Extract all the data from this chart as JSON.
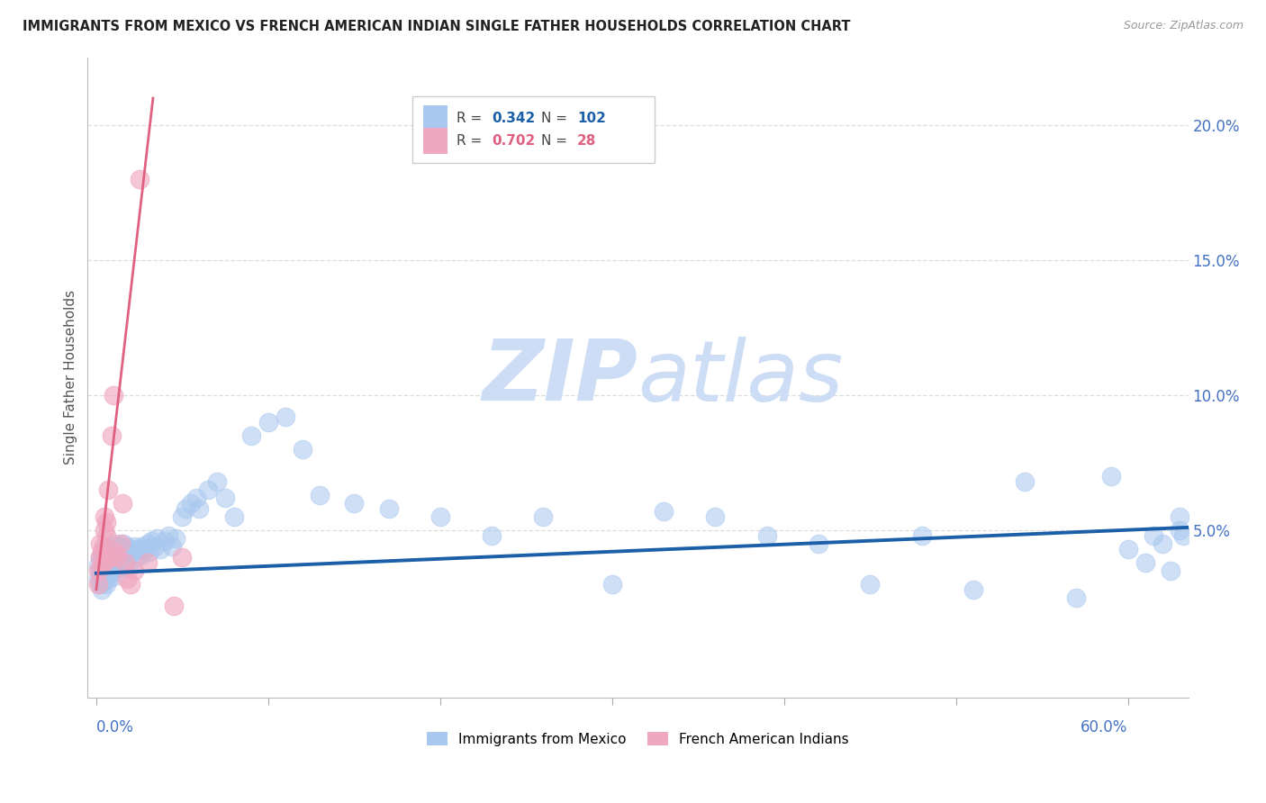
{
  "title": "IMMIGRANTS FROM MEXICO VS FRENCH AMERICAN INDIAN SINGLE FATHER HOUSEHOLDS CORRELATION CHART",
  "source": "Source: ZipAtlas.com",
  "ylabel": "Single Father Households",
  "y_tick_vals": [
    0.05,
    0.1,
    0.15,
    0.2
  ],
  "y_tick_labels": [
    "5.0%",
    "10.0%",
    "15.0%",
    "20.0%"
  ],
  "xlim": [
    -0.005,
    0.635
  ],
  "ylim": [
    -0.012,
    0.225
  ],
  "blue_R": 0.342,
  "blue_N": 102,
  "pink_R": 0.702,
  "pink_N": 28,
  "blue_color": "#a8c8f0",
  "pink_color": "#f0a8c0",
  "blue_line_color": "#1a5fa8",
  "pink_line_color": "#e06080",
  "watermark_zip": "ZIP",
  "watermark_atlas": "atlas",
  "watermark_color": "#ccddf5",
  "background_color": "#ffffff",
  "legend_label_blue": "Immigrants from Mexico",
  "legend_label_pink": "French American Indians",
  "blue_x": [
    0.001,
    0.001,
    0.002,
    0.002,
    0.002,
    0.003,
    0.003,
    0.003,
    0.004,
    0.004,
    0.004,
    0.005,
    0.005,
    0.005,
    0.006,
    0.006,
    0.006,
    0.007,
    0.007,
    0.007,
    0.008,
    0.008,
    0.008,
    0.009,
    0.009,
    0.01,
    0.01,
    0.01,
    0.011,
    0.011,
    0.012,
    0.012,
    0.013,
    0.013,
    0.014,
    0.014,
    0.015,
    0.015,
    0.016,
    0.016,
    0.017,
    0.017,
    0.018,
    0.018,
    0.019,
    0.019,
    0.02,
    0.021,
    0.022,
    0.023,
    0.025,
    0.026,
    0.027,
    0.028,
    0.03,
    0.031,
    0.032,
    0.034,
    0.035,
    0.037,
    0.04,
    0.042,
    0.044,
    0.046,
    0.05,
    0.052,
    0.055,
    0.058,
    0.06,
    0.065,
    0.07,
    0.075,
    0.08,
    0.09,
    0.1,
    0.11,
    0.12,
    0.13,
    0.15,
    0.17,
    0.2,
    0.23,
    0.26,
    0.3,
    0.33,
    0.36,
    0.39,
    0.42,
    0.45,
    0.48,
    0.51,
    0.54,
    0.57,
    0.59,
    0.6,
    0.61,
    0.615,
    0.62,
    0.625,
    0.63,
    0.63,
    0.632
  ],
  "blue_y": [
    0.037,
    0.032,
    0.04,
    0.035,
    0.03,
    0.038,
    0.033,
    0.028,
    0.041,
    0.036,
    0.031,
    0.043,
    0.038,
    0.033,
    0.04,
    0.035,
    0.03,
    0.042,
    0.037,
    0.032,
    0.044,
    0.039,
    0.034,
    0.041,
    0.036,
    0.043,
    0.038,
    0.033,
    0.045,
    0.04,
    0.042,
    0.037,
    0.044,
    0.039,
    0.041,
    0.036,
    0.043,
    0.038,
    0.045,
    0.04,
    0.042,
    0.037,
    0.044,
    0.039,
    0.041,
    0.036,
    0.043,
    0.042,
    0.044,
    0.04,
    0.043,
    0.044,
    0.041,
    0.043,
    0.045,
    0.042,
    0.046,
    0.044,
    0.047,
    0.043,
    0.046,
    0.048,
    0.044,
    0.047,
    0.055,
    0.058,
    0.06,
    0.062,
    0.058,
    0.065,
    0.068,
    0.062,
    0.055,
    0.085,
    0.09,
    0.092,
    0.08,
    0.063,
    0.06,
    0.058,
    0.055,
    0.048,
    0.055,
    0.03,
    0.057,
    0.055,
    0.048,
    0.045,
    0.03,
    0.048,
    0.028,
    0.068,
    0.025,
    0.07,
    0.043,
    0.038,
    0.048,
    0.045,
    0.035,
    0.055,
    0.05,
    0.048
  ],
  "pink_x": [
    0.001,
    0.001,
    0.002,
    0.002,
    0.003,
    0.003,
    0.004,
    0.004,
    0.005,
    0.005,
    0.006,
    0.006,
    0.007,
    0.008,
    0.009,
    0.01,
    0.011,
    0.012,
    0.014,
    0.015,
    0.017,
    0.018,
    0.02,
    0.022,
    0.025,
    0.03,
    0.045,
    0.05
  ],
  "pink_y": [
    0.035,
    0.03,
    0.04,
    0.045,
    0.037,
    0.042,
    0.038,
    0.044,
    0.05,
    0.055,
    0.048,
    0.053,
    0.065,
    0.04,
    0.085,
    0.1,
    0.042,
    0.04,
    0.045,
    0.06,
    0.038,
    0.032,
    0.03,
    0.035,
    0.18,
    0.038,
    0.022,
    0.04
  ],
  "pink_line_x0": 0.0,
  "pink_line_y0": 0.028,
  "pink_line_x1": 0.033,
  "pink_line_y1": 0.21,
  "blue_line_x0": 0.0,
  "blue_line_y0": 0.034,
  "blue_line_x1": 0.635,
  "blue_line_y1": 0.051
}
